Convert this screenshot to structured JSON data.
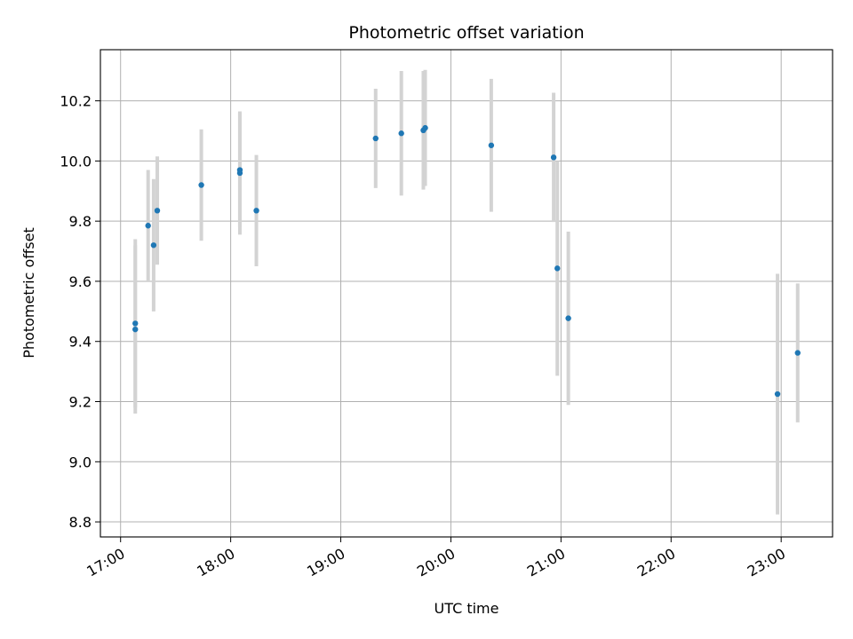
{
  "chart_data": {
    "type": "scatter",
    "title": "Photometric offset variation",
    "xlabel": "UTC time",
    "ylabel": "Photometric offset",
    "x_tick_labels": [
      "17:00",
      "18:00",
      "19:00",
      "20:00",
      "21:00",
      "22:00",
      "23:00"
    ],
    "y_tick_labels": [
      "8.8",
      "9.0",
      "9.2",
      "9.4",
      "9.6",
      "9.8",
      "10.0",
      "10.2"
    ],
    "y_ticks": [
      8.8,
      9.0,
      9.2,
      9.4,
      9.6,
      9.8,
      10.0,
      10.2
    ],
    "x_ticks": [
      "17:00",
      "18:00",
      "19:00",
      "20:00",
      "21:00",
      "22:00",
      "23:00"
    ],
    "xlim": [
      "16:49",
      "23:28"
    ],
    "ylim": [
      8.75,
      10.37
    ],
    "grid": true,
    "error_bar_style": "vertical",
    "colors": {
      "point": "#1f77b4",
      "error_bar": "#d3d3d3",
      "grid": "#b0b0b0"
    },
    "points": [
      {
        "x": "17:08",
        "y": 9.44,
        "yerr": 0.28
      },
      {
        "x": "17:08",
        "y": 9.46,
        "yerr": 0.28
      },
      {
        "x": "17:15",
        "y": 9.785,
        "yerr": 0.185
      },
      {
        "x": "17:18",
        "y": 9.72,
        "yerr": 0.22
      },
      {
        "x": "17:20",
        "y": 9.835,
        "yerr": 0.18
      },
      {
        "x": "17:44",
        "y": 9.92,
        "yerr": 0.185
      },
      {
        "x": "18:05",
        "y": 9.97,
        "yerr": 0.19
      },
      {
        "x": "18:05",
        "y": 9.96,
        "yerr": 0.205
      },
      {
        "x": "18:14",
        "y": 9.835,
        "yerr": 0.185
      },
      {
        "x": "19:19",
        "y": 10.075,
        "yerr": 0.165
      },
      {
        "x": "19:33",
        "y": 10.092,
        "yerr": 0.207
      },
      {
        "x": "19:45",
        "y": 10.102,
        "yerr": 0.197
      },
      {
        "x": "19:46",
        "y": 10.11,
        "yerr": 0.193
      },
      {
        "x": "20:22",
        "y": 10.052,
        "yerr": 0.221
      },
      {
        "x": "20:56",
        "y": 10.012,
        "yerr": 0.215
      },
      {
        "x": "20:58",
        "y": 9.643,
        "yerr": 0.357
      },
      {
        "x": "21:04",
        "y": 9.477,
        "yerr": 0.288
      },
      {
        "x": "22:58",
        "y": 9.225,
        "yerr": 0.4
      },
      {
        "x": "23:09",
        "y": 9.362,
        "yerr": 0.231
      }
    ]
  }
}
